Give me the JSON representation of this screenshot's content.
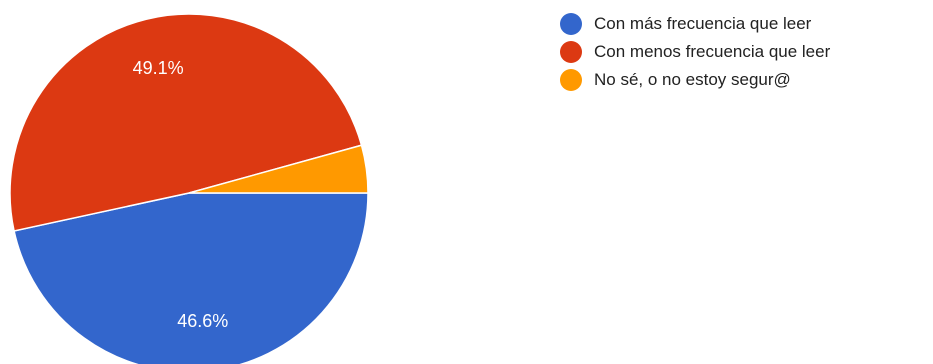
{
  "chart_data": {
    "type": "pie",
    "title": "",
    "slices": [
      {
        "label": "Con más frecuencia que leer",
        "value": 46.6,
        "display": "46.6%",
        "color": "#3366cc"
      },
      {
        "label": "Con menos frecuencia que leer",
        "value": 49.1,
        "display": "49.1%",
        "color": "#dc3912"
      },
      {
        "label": "No sé, o no estoy segur@",
        "value": 4.3,
        "display": "",
        "color": "#ff9900"
      }
    ],
    "legend_position": "right"
  }
}
